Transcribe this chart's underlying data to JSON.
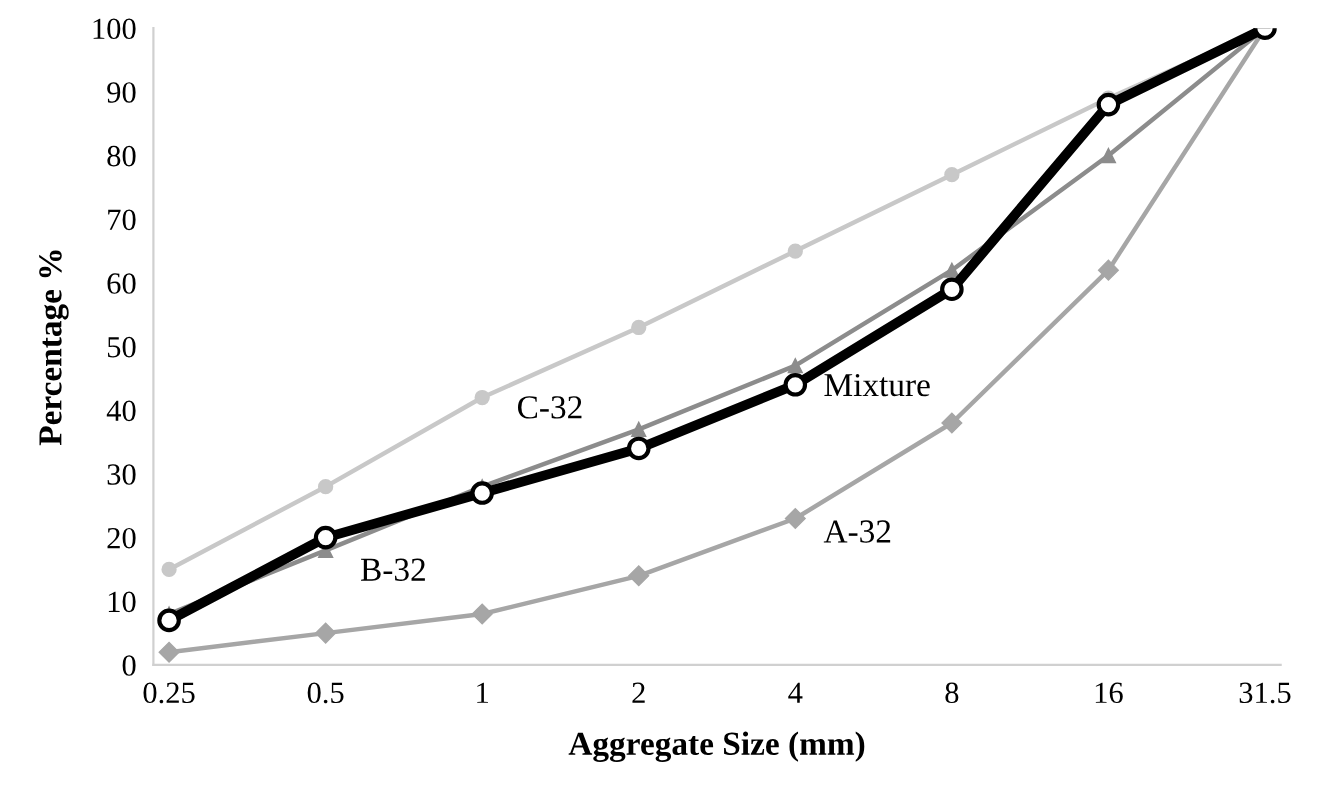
{
  "chart_data": {
    "type": "line",
    "xlabel": "Aggregate Size (mm)",
    "ylabel": "Percentage %",
    "categories": [
      "0.25",
      "0.5",
      "1",
      "2",
      "4",
      "8",
      "16",
      "31.5"
    ],
    "ylim": [
      0,
      100
    ],
    "yticks": [
      0,
      10,
      20,
      30,
      40,
      50,
      60,
      70,
      80,
      90,
      100
    ],
    "grid": false,
    "legend": false,
    "series": [
      {
        "name": "A-32",
        "color": "#a6a6a6",
        "marker": "diamond",
        "values": [
          2,
          5,
          8,
          14,
          23,
          38,
          62,
          100
        ]
      },
      {
        "name": "B-32",
        "color": "#8c8c8c",
        "marker": "triangle",
        "values": [
          8,
          18,
          28,
          37,
          47,
          62,
          80,
          100
        ]
      },
      {
        "name": "C-32",
        "color": "#c8c8c8",
        "marker": "circle",
        "values": [
          15,
          28,
          42,
          53,
          65,
          77,
          89,
          100
        ]
      },
      {
        "name": "Mixture",
        "color": "#000000",
        "marker": "circle",
        "values": [
          7,
          20,
          27,
          34,
          44,
          59,
          88,
          100
        ]
      }
    ]
  }
}
